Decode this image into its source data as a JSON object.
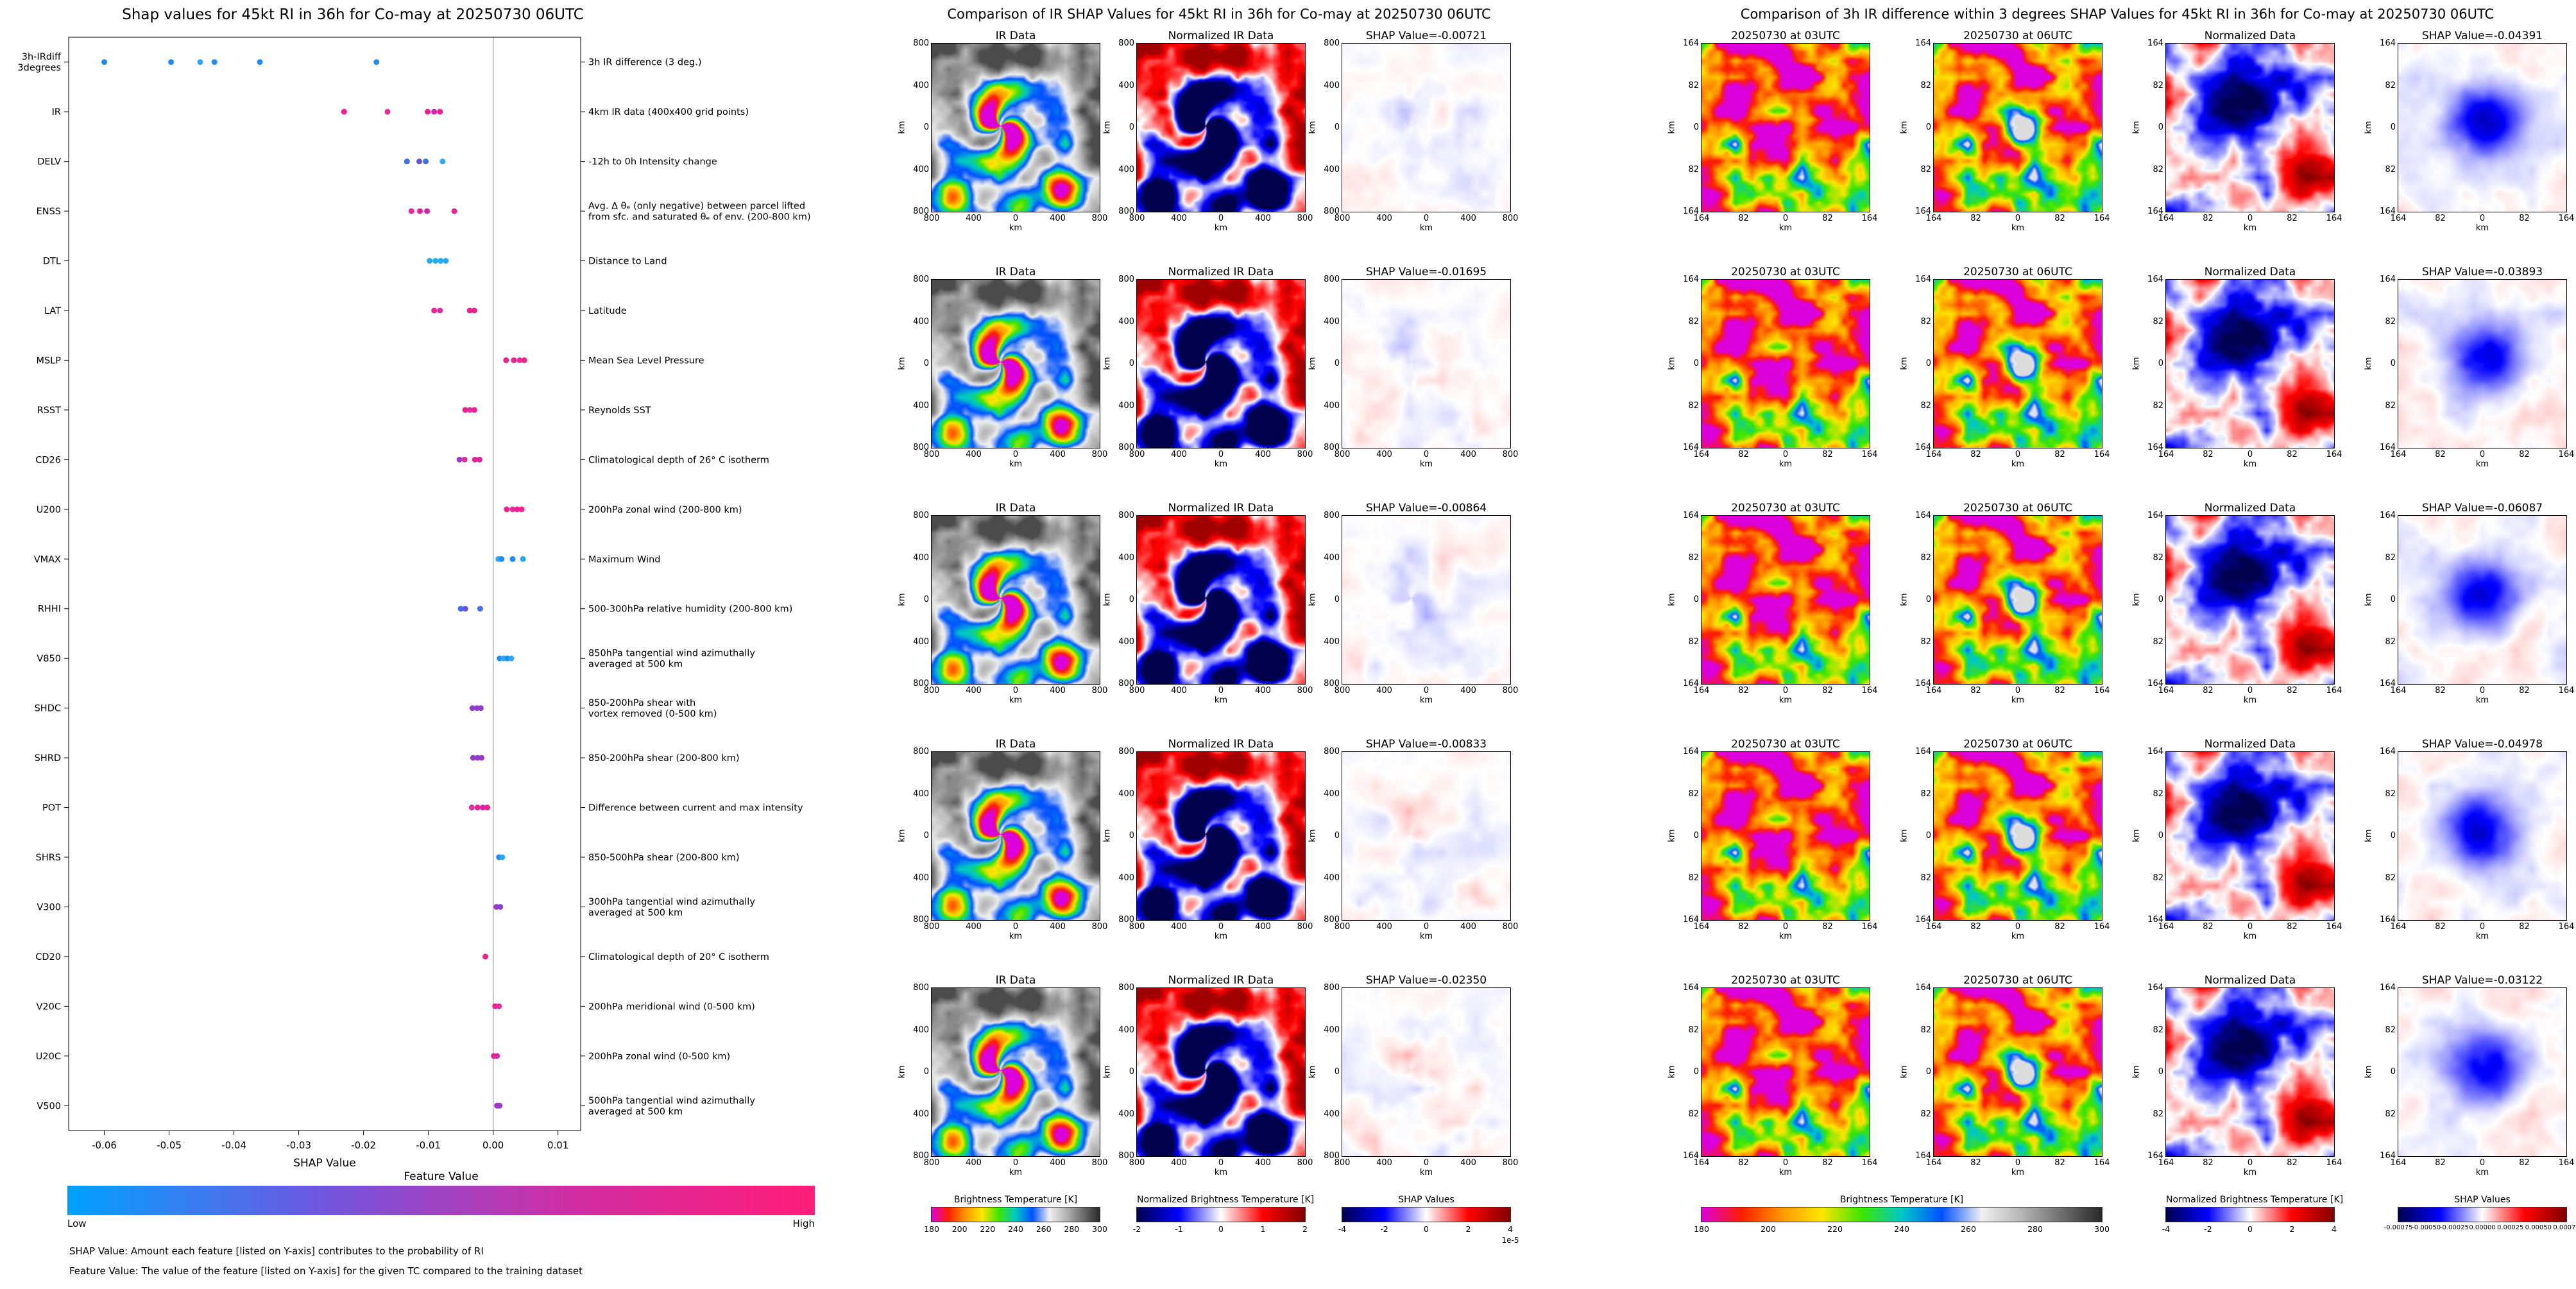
{
  "chart_data": [
    {
      "type": "scatter",
      "title": "Shap values for 45kt RI in 36h for Co-may at 20250730 06UTC",
      "xlabel": "SHAP Value",
      "xlim": [
        -0.0655,
        0.0135
      ],
      "x_ticks": [
        -0.06,
        -0.05,
        -0.04,
        -0.03,
        -0.02,
        -0.01,
        0.0,
        0.01
      ],
      "x_tick_labels": [
        "-0.06",
        "-0.05",
        "-0.04",
        "-0.03",
        "-0.02",
        "-0.01",
        "0.00",
        "0.01"
      ],
      "zero_line": true,
      "features": [
        {
          "name": "3h-IRdiff\n3degrees",
          "desc": "3h IR difference (3 deg.)",
          "dots": [
            [
              -0.06,
              "#1e8bf7"
            ],
            [
              -0.0497,
              "#1e8bf7"
            ],
            [
              -0.0452,
              "#2fa8f5"
            ],
            [
              -0.043,
              "#1e8bf7"
            ],
            [
              -0.036,
              "#1e8bf7"
            ],
            [
              -0.018,
              "#1e8bf7"
            ]
          ]
        },
        {
          "name": "IR",
          "desc": "4km IR data (400x400 grid points)",
          "dots": [
            [
              -0.023,
              "#f0208c"
            ],
            [
              -0.0163,
              "#e02da0"
            ],
            [
              -0.0101,
              "#f0208c"
            ],
            [
              -0.0091,
              "#d128a8"
            ],
            [
              -0.0082,
              "#f0208c"
            ]
          ]
        },
        {
          "name": "DELV",
          "desc": "-12h to 0h Intensity change",
          "dots": [
            [
              -0.0133,
              "#3f6ef0"
            ],
            [
              -0.0114,
              "#6a52d8"
            ],
            [
              -0.0104,
              "#3f6ef0"
            ],
            [
              -0.0078,
              "#2fa8f5"
            ]
          ]
        },
        {
          "name": "ENSS",
          "desc": "Avg. Δ θₑ (only negative) between parcel lifted\nfrom sfc. and saturated θₑ of env. (200-800 km)",
          "dots": [
            [
              -0.0126,
              "#e02da0"
            ],
            [
              -0.0113,
              "#f0208c"
            ],
            [
              -0.0102,
              "#d128a8"
            ],
            [
              -0.006,
              "#f0208c"
            ]
          ]
        },
        {
          "name": "DTL",
          "desc": "Distance to Land",
          "dots": [
            [
              -0.0098,
              "#23aaf2"
            ],
            [
              -0.0089,
              "#23aaf2"
            ],
            [
              -0.0081,
              "#23aaf2"
            ],
            [
              -0.0073,
              "#23aaf2"
            ]
          ]
        },
        {
          "name": "LAT",
          "desc": "Latitude",
          "dots": [
            [
              -0.0091,
              "#f0208c"
            ],
            [
              -0.0082,
              "#e02da0"
            ],
            [
              -0.0036,
              "#f0208c"
            ],
            [
              -0.0029,
              "#f0208c"
            ]
          ]
        },
        {
          "name": "MSLP",
          "desc": "Mean Sea Level Pressure",
          "dots": [
            [
              0.002,
              "#f0208c"
            ],
            [
              0.0032,
              "#f0208c"
            ],
            [
              0.0041,
              "#e02da0"
            ],
            [
              0.0048,
              "#f0208c"
            ]
          ]
        },
        {
          "name": "RSST",
          "desc": "Reynolds SST",
          "dots": [
            [
              -0.0043,
              "#f0208c"
            ],
            [
              -0.0036,
              "#e02da0"
            ],
            [
              -0.0029,
              "#f0208c"
            ]
          ]
        },
        {
          "name": "CD26",
          "desc": "Climatological depth of 26° C isotherm",
          "dots": [
            [
              -0.0052,
              "#a236c8"
            ],
            [
              -0.0044,
              "#e02da0"
            ],
            [
              -0.0028,
              "#f0208c"
            ],
            [
              -0.0021,
              "#d128a8"
            ]
          ]
        },
        {
          "name": "U200",
          "desc": "200hPa zonal wind (200-800 km)",
          "dots": [
            [
              0.0021,
              "#f0208c"
            ],
            [
              0.003,
              "#e02da0"
            ],
            [
              0.0037,
              "#f0208c"
            ],
            [
              0.0044,
              "#f0208c"
            ]
          ]
        },
        {
          "name": "VMAX",
          "desc": "Maximum Wind",
          "dots": [
            [
              0.0008,
              "#2fa8f5"
            ],
            [
              0.0013,
              "#1e8bf7"
            ],
            [
              0.003,
              "#1e8bf7"
            ],
            [
              0.0046,
              "#23aaf2"
            ]
          ]
        },
        {
          "name": "RHHI",
          "desc": "500-300hPa relative humidity (200-800 km)",
          "dots": [
            [
              -0.005,
              "#3f6ef0"
            ],
            [
              -0.0043,
              "#6a52d8"
            ],
            [
              -0.002,
              "#3f6ef0"
            ]
          ]
        },
        {
          "name": "V850",
          "desc": "850hPa tangential wind azimuthally\naveraged at 500 km",
          "dots": [
            [
              0.001,
              "#1e8bf7"
            ],
            [
              0.0016,
              "#23aaf2"
            ],
            [
              0.0022,
              "#1e8bf7"
            ],
            [
              0.0028,
              "#2fa8f5"
            ]
          ]
        },
        {
          "name": "SHDC",
          "desc": "850-200hPa shear with\nvortex removed (0-500 km)",
          "dots": [
            [
              -0.0032,
              "#8a3fd1"
            ],
            [
              -0.0025,
              "#9a36c8"
            ],
            [
              -0.0019,
              "#8a3fd1"
            ]
          ]
        },
        {
          "name": "SHRD",
          "desc": "850-200hPa shear (200-800 km)",
          "dots": [
            [
              -0.0031,
              "#9a36c8"
            ],
            [
              -0.0024,
              "#8a3fd1"
            ],
            [
              -0.0018,
              "#9a36c8"
            ]
          ]
        },
        {
          "name": "POT",
          "desc": "Difference between current and max intensity",
          "dots": [
            [
              -0.0033,
              "#e02da0"
            ],
            [
              -0.0024,
              "#f0208c"
            ],
            [
              -0.0016,
              "#d128a8"
            ],
            [
              -0.0009,
              "#f0208c"
            ]
          ]
        },
        {
          "name": "SHRS",
          "desc": "850-500hPa shear (200-800 km)",
          "dots": [
            [
              0.0009,
              "#1e8bf7"
            ],
            [
              0.0014,
              "#23aaf2"
            ]
          ]
        },
        {
          "name": "V300",
          "desc": "300hPa tangential wind azimuthally\naveraged at 500 km",
          "dots": [
            [
              0.0005,
              "#9a36c8"
            ],
            [
              0.0011,
              "#8a3fd1"
            ]
          ]
        },
        {
          "name": "CD20",
          "desc": "Climatological depth of 20° C isotherm",
          "dots": [
            [
              -0.0012,
              "#f0208c"
            ]
          ]
        },
        {
          "name": "V20C",
          "desc": "200hPa meridional wind (0-500 km)",
          "dots": [
            [
              0.0003,
              "#f0208c"
            ],
            [
              0.0009,
              "#e02da0"
            ]
          ]
        },
        {
          "name": "U20C",
          "desc": "200hPa zonal wind (0-500 km)",
          "dots": [
            [
              0.0001,
              "#f0208c"
            ],
            [
              0.0006,
              "#d128a8"
            ]
          ]
        },
        {
          "name": "V500",
          "desc": "500hPa tangential wind azimuthally\naveraged at 500 km",
          "dots": [
            [
              0.0006,
              "#9a36c8"
            ],
            [
              0.001,
              "#a236c8"
            ]
          ]
        }
      ],
      "colorbar": {
        "title": "Feature Value",
        "low": "Low",
        "high": "High"
      },
      "footnotes": [
        "SHAP Value: Amount each feature [listed on Y-axis] contributes to the probability of RI",
        "Feature Value: The value of the feature [listed on Y-axis] for the given TC compared to the training dataset"
      ]
    },
    {
      "type": "heatmap",
      "title": "Comparison of IR SHAP Values for 45kt RI in 36h for Co-may at 20250730 06UTC",
      "columns": [
        "IR Data",
        "Normalized IR Data",
        "SHAP Value"
      ],
      "rows_shap_values": [
        "-0.00721",
        "-0.01695",
        "-0.00864",
        "-0.00833",
        "-0.02350"
      ],
      "axis_ticks": [
        "800",
        "400",
        "0",
        "400",
        "800"
      ],
      "axis_unit": "km",
      "colorbars": [
        {
          "col": 0,
          "label": "Brightness Temperature [K]",
          "ticks": [
            "180",
            "200",
            "220",
            "240",
            "260",
            "280",
            "300"
          ],
          "cmap": "bt"
        },
        {
          "col": 1,
          "label": "Normalized Brightness Temperature [K]",
          "ticks": [
            "-2",
            "-1",
            "0",
            "1",
            "2"
          ],
          "cmap": "seismic"
        },
        {
          "col": 2,
          "label": "SHAP Values",
          "ticks": [
            "-4",
            "-2",
            "0",
            "2",
            "4"
          ],
          "cmap": "seismic",
          "scale": "1e-5"
        }
      ]
    },
    {
      "type": "heatmap",
      "title": "Comparison of 3h IR difference within 3 degrees SHAP Values for 45kt RI in 36h for Co-may at 20250730 06UTC",
      "columns": [
        "20250730 at 03UTC",
        "20250730 at 06UTC",
        "Normalized Data",
        "SHAP Value"
      ],
      "rows_shap_values": [
        "-0.04391",
        "-0.03893",
        "-0.06087",
        "-0.04978",
        "-0.03122"
      ],
      "axis_ticks": [
        "164",
        "82",
        "0",
        "82",
        "164"
      ],
      "axis_unit": "km",
      "colorbars": [
        {
          "col": 0,
          "span": 2,
          "label": "Brightness Temperature [K]",
          "ticks": [
            "180",
            "200",
            "220",
            "240",
            "260",
            "280",
            "300"
          ],
          "cmap": "bt"
        },
        {
          "col": 2,
          "label": "Normalized Brightness Temperature [K]",
          "ticks": [
            "-4",
            "-2",
            "0",
            "2",
            "4"
          ],
          "cmap": "seismic"
        },
        {
          "col": 3,
          "label": "SHAP Values",
          "ticks": [
            "-0.00075",
            "-0.00050",
            "-0.00025",
            "0.00000",
            "0.00025",
            "0.00050",
            "0.00075"
          ],
          "cmap": "seismic"
        }
      ]
    }
  ],
  "colormaps": {
    "bt": [
      "#dc00dc",
      "#ff1e00",
      "#ff9600",
      "#ffe600",
      "#3ce600",
      "#00c8c8",
      "#0050ff",
      "#f0f0f0",
      "#b4b4b4",
      "#6e6e6e",
      "#282828"
    ],
    "seismic": [
      "#00004c",
      "#0000ff",
      "#ffffff",
      "#ff0000",
      "#7f0000"
    ],
    "feature_value": [
      "#00a2ff",
      "#6e58e0",
      "#cf2fa4",
      "#ff1e78"
    ]
  }
}
